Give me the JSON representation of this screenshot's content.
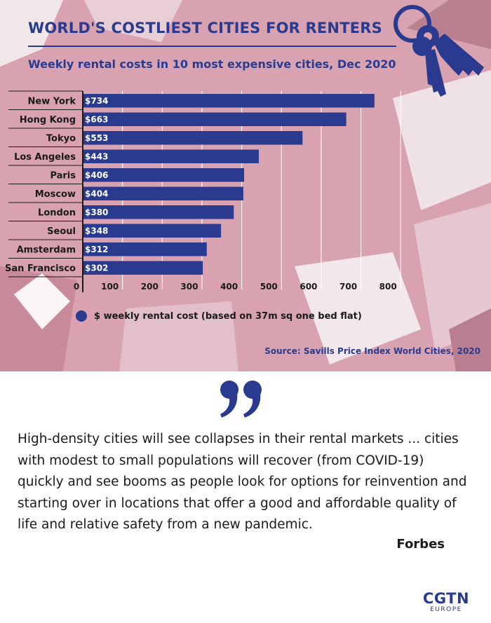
{
  "header": {
    "title": "WORLD'S COSTLIEST CITIES FOR RENTERS",
    "subtitle": "Weekly rental costs in 10 most expensive cities, Dec 2020"
  },
  "legend": {
    "label": "$ weekly rental cost (based on 37m sq one bed flat)"
  },
  "source": "Source: Savills Price Index World Cities, 2020",
  "quote": {
    "text": "High-density cities will see collapses in their rental markets ... cities with modest to small populations will recover (from COVID-19) quickly and see booms as people look for options for reinvention and starting over in locations that offer a good and affordable quality of life and relative safety from a new pandemic.",
    "attribution": "Forbes"
  },
  "logo": {
    "main": "CGTN",
    "sub": "EUROPE"
  },
  "icons": {
    "decoration": "keys-icon",
    "quote": "quote-mark-icon"
  },
  "colors": {
    "accent": "#2a3b8f",
    "background": "#d9a2b1"
  },
  "chart_data": {
    "type": "bar",
    "orientation": "horizontal",
    "categories": [
      "New York",
      "Hong Kong",
      "Tokyo",
      "Los Angeles",
      "Paris",
      "Moscow",
      "London",
      "Seoul",
      "Amsterdam",
      "San Francisco"
    ],
    "values": [
      734,
      663,
      553,
      443,
      406,
      404,
      380,
      348,
      312,
      302
    ],
    "data_labels": [
      "$734",
      "$663",
      "$553",
      "$443",
      "$406",
      "$404",
      "$380",
      "$348",
      "$312",
      "$302"
    ],
    "xticks": [
      0,
      100,
      200,
      300,
      400,
      500,
      600,
      700,
      800
    ],
    "xlim": [
      0,
      800
    ],
    "grid": true,
    "legend_position": "bottom-left"
  }
}
